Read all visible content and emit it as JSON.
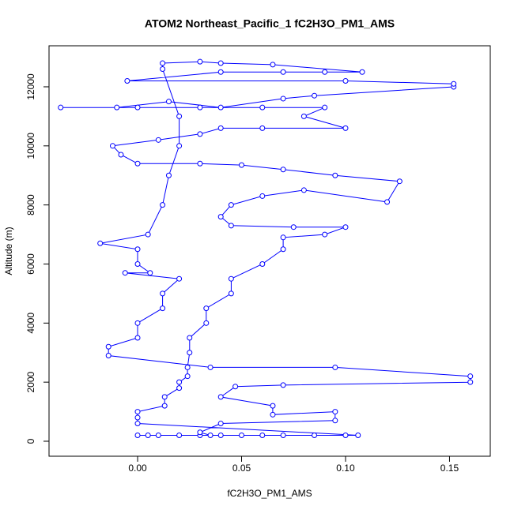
{
  "chart_data": {
    "type": "line",
    "markers": true,
    "title": "ATOM2 Northeast_Pacific_1 fC2H3O_PM1_AMS",
    "x_label": "fC2H3O_PM1_AMS",
    "y_label": "Altitude (m)",
    "color": "#0000ff",
    "xlim": [
      -0.0426,
      0.1696
    ],
    "ylim": [
      -508,
      13389
    ],
    "xticks": [
      {
        "value": 0,
        "label": "0.00"
      },
      0.05,
      {
        "value": 0.1,
        "label": "0.10"
      },
      0.15
    ],
    "yticks": [
      0,
      2000,
      4000,
      6000,
      8000,
      10000,
      12000
    ],
    "x": [
      0.0,
      0.005,
      0.01,
      0.02,
      0.03,
      0.04,
      0.05,
      0.06,
      0.07,
      0.085,
      0.1,
      0.106,
      0.0,
      0.0,
      0.0,
      0.013,
      0.013,
      0.02,
      0.02,
      0.024,
      0.024,
      0.025,
      0.025,
      0.033,
      0.033,
      0.045,
      0.045,
      0.06,
      0.07,
      0.07,
      0.09,
      0.1,
      0.075,
      0.045,
      0.04,
      0.045,
      0.06,
      0.08,
      0.12,
      0.126,
      0.095,
      0.07,
      0.05,
      0.03,
      0.0,
      -0.008,
      -0.012,
      0.01,
      0.03,
      0.04,
      0.06,
      0.1,
      0.08,
      0.09,
      0.06,
      0.03,
      0.0,
      -0.037,
      -0.01,
      0.015,
      0.04,
      0.07,
      0.085,
      0.152,
      0.152,
      0.1,
      -0.005,
      0.04,
      0.07,
      0.09,
      0.108,
      0.065,
      0.04,
      0.03,
      0.012,
      0.012,
      0.02,
      0.02,
      0.015,
      0.012,
      0.005,
      -0.018,
      0.0,
      0.0,
      0.006,
      -0.006,
      0.02,
      0.012,
      0.012,
      0.0,
      0.0,
      -0.014,
      -0.014,
      0.035,
      0.095,
      0.16,
      0.16,
      0.07,
      0.047,
      0.04,
      0.065,
      0.065,
      0.095,
      0.095,
      0.04,
      0.03,
      0.035
    ],
    "values": [
      200,
      200,
      200,
      200,
      200,
      200,
      200,
      200,
      200,
      200,
      200,
      200,
      600,
      800,
      1000,
      1200,
      1500,
      1800,
      2000,
      2200,
      2500,
      3000,
      3500,
      4000,
      4500,
      5000,
      5500,
      6000,
      6500,
      6900,
      7000,
      7250,
      7250,
      7300,
      7600,
      8000,
      8300,
      8500,
      8100,
      8800,
      9000,
      9200,
      9350,
      9400,
      9400,
      9700,
      10000,
      10200,
      10400,
      10600,
      10600,
      10600,
      11000,
      11300,
      11300,
      11300,
      11300,
      11300,
      11300,
      11500,
      11300,
      11600,
      11700,
      12000,
      12100,
      12200,
      12200,
      12500,
      12500,
      12500,
      12500,
      12750,
      12800,
      12850,
      12800,
      12600,
      11000,
      10000,
      9000,
      8000,
      7000,
      6700,
      6500,
      6000,
      5700,
      5700,
      5500,
      5000,
      4500,
      4000,
      3500,
      3200,
      2900,
      2500,
      2500,
      2200,
      2000,
      1900,
      1850,
      1500,
      1200,
      900,
      1000,
      700,
      600,
      300,
      200
    ]
  }
}
